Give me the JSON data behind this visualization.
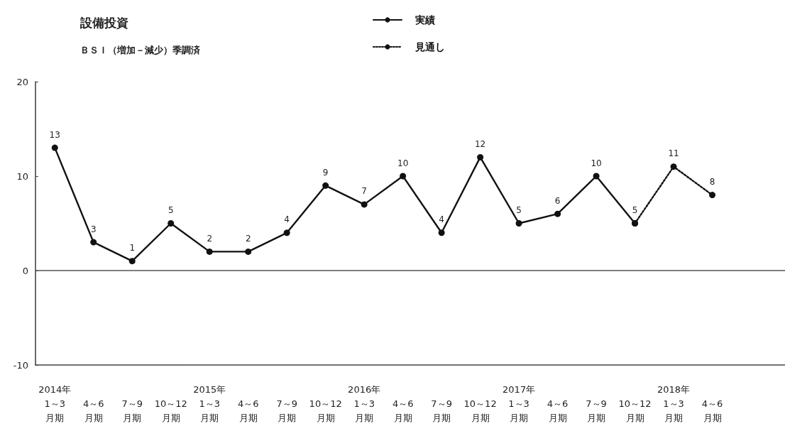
{
  "chart_data": {
    "type": "line",
    "title": "設備投資",
    "subtitle": "ＢＳＩ（増加－減少）季調済",
    "categories": [
      "2014年\n1～3\n月期",
      "4～6\n月期",
      "7～9\n月期",
      "10～12\n月期",
      "2015年\n1～3\n月期",
      "4～6\n月期",
      "7～9\n月期",
      "10～12\n月期",
      "2016年\n1～3\n月期",
      "4～6\n月期",
      "7～9\n月期",
      "10～12\n月期",
      "2017年\n1～3\n月期",
      "4～6\n月期",
      "7～9\n月期",
      "10～12\n月期",
      "2018年\n1～3\n月期",
      "4～6\n月期"
    ],
    "series": [
      {
        "name": "実績",
        "color": "#111111",
        "line_style": "solid",
        "values": [
          13,
          3,
          1,
          5,
          2,
          2,
          4,
          9,
          7,
          10,
          4,
          12,
          5,
          6,
          10,
          5,
          null,
          null
        ],
        "value_labels": [
          "13",
          "3",
          "1",
          "5",
          "2",
          "2",
          "4",
          "9",
          "7",
          "10",
          "4",
          "12",
          "5",
          "6",
          "10",
          "5",
          null,
          null
        ]
      },
      {
        "name": "見通し",
        "color": "#111111",
        "line_style": "dotted",
        "values": [
          null,
          null,
          null,
          null,
          null,
          null,
          null,
          null,
          null,
          null,
          null,
          null,
          null,
          null,
          null,
          5,
          11,
          8
        ],
        "value_labels": [
          null,
          null,
          null,
          null,
          null,
          null,
          null,
          null,
          null,
          null,
          null,
          null,
          null,
          null,
          null,
          null,
          "11",
          "8"
        ]
      }
    ],
    "ylim": [
      -10,
      20
    ],
    "yticks": [
      -10,
      0,
      10,
      20
    ],
    "grid": false,
    "legend": "top",
    "marker": "circle",
    "ref_lines": [
      {
        "axis": "y",
        "value": 0
      }
    ]
  }
}
